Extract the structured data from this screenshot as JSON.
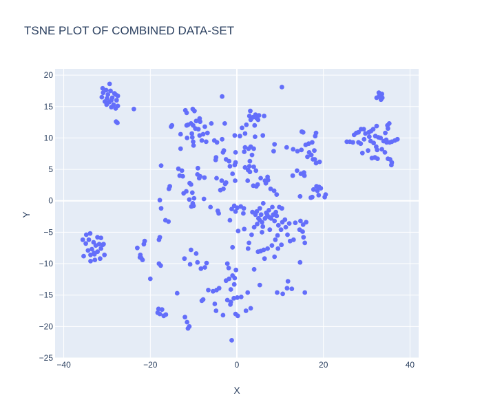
{
  "chart_data": {
    "type": "scatter",
    "title": "TSNE PLOT OF COMBINED DATA-SET",
    "xlabel": "X",
    "ylabel": "Y",
    "xlim": [
      -42,
      42
    ],
    "ylim": [
      -25,
      21
    ],
    "x_ticks": [
      -40,
      -20,
      0,
      20,
      40
    ],
    "y_ticks": [
      -25,
      -20,
      -15,
      -10,
      -5,
      0,
      5,
      10,
      15,
      20
    ],
    "x_tick_labels": [
      "−40",
      "−20",
      "0",
      "20",
      "40"
    ],
    "y_tick_labels": [
      "−25",
      "−20",
      "−15",
      "−10",
      "−5",
      "0",
      "5",
      "10",
      "15",
      "20"
    ],
    "grid": true,
    "background": "#e5ecf6",
    "marker_color": "#636efa",
    "points": [
      [
        -29.4,
        18.6
      ],
      [
        -31.0,
        17.9
      ],
      [
        -30.2,
        17.6
      ],
      [
        -29.2,
        17.5
      ],
      [
        -28.0,
        16.9
      ],
      [
        -27.5,
        16.7
      ],
      [
        -29.8,
        16.9
      ],
      [
        -30.9,
        17.2
      ],
      [
        -31.2,
        16.5
      ],
      [
        -30.0,
        16.3
      ],
      [
        -28.8,
        16.4
      ],
      [
        -27.8,
        16.0
      ],
      [
        -29.5,
        15.7
      ],
      [
        -30.5,
        15.8
      ],
      [
        -28.5,
        15.3
      ],
      [
        -27.5,
        15.1
      ],
      [
        -29.0,
        14.9
      ],
      [
        -30.1,
        15.3
      ],
      [
        -28.0,
        14.7
      ],
      [
        -27.9,
        12.6
      ],
      [
        -27.6,
        12.4
      ],
      [
        -23.8,
        14.6
      ],
      [
        -29.0,
        16.0
      ],
      [
        -28.3,
        17.1
      ],
      [
        -35.6,
        -6.2
      ],
      [
        -34.8,
        -5.4
      ],
      [
        -33.9,
        -5.2
      ],
      [
        -34.9,
        -6.8
      ],
      [
        -34.2,
        -6.2
      ],
      [
        -33.1,
        -6.6
      ],
      [
        -32.2,
        -5.8
      ],
      [
        -31.4,
        -5.9
      ],
      [
        -31.8,
        -6.9
      ],
      [
        -31.0,
        -7.0
      ],
      [
        -30.8,
        -6.9
      ],
      [
        -32.6,
        -7.1
      ],
      [
        -33.5,
        -7.7
      ],
      [
        -34.4,
        -7.9
      ],
      [
        -33.0,
        -8.3
      ],
      [
        -32.2,
        -8.1
      ],
      [
        -31.4,
        -7.6
      ],
      [
        -30.6,
        -8.6
      ],
      [
        -33.8,
        -8.6
      ],
      [
        -32.8,
        -9.4
      ],
      [
        -33.8,
        -9.6
      ],
      [
        -35.4,
        -8.8
      ],
      [
        -31.6,
        -9.2
      ],
      [
        -32.9,
        -8.5
      ],
      [
        -23.0,
        -7.5
      ],
      [
        -22.3,
        -8.6
      ],
      [
        -22.1,
        -9.1
      ],
      [
        -21.8,
        -9.4
      ],
      [
        -21.5,
        -6.9
      ],
      [
        -21.3,
        -6.4
      ],
      [
        -22.4,
        -9.0
      ],
      [
        -20.0,
        -12.4
      ],
      [
        -18.1,
        -17.2
      ],
      [
        -17.8,
        -18.0
      ],
      [
        -17.3,
        -17.3
      ],
      [
        -16.9,
        -18.3
      ],
      [
        -16.4,
        -18.1
      ],
      [
        -18.3,
        -17.8
      ],
      [
        -18.0,
        -10.0
      ],
      [
        -17.6,
        -10.3
      ],
      [
        -18.0,
        -6.2
      ],
      [
        -17.8,
        -5.8
      ],
      [
        -17.8,
        0.1
      ],
      [
        -17.5,
        -1.2
      ],
      [
        -16.5,
        -3.1
      ],
      [
        -15.8,
        -3.3
      ],
      [
        -17.5,
        5.6
      ],
      [
        -12.0,
        -18.5
      ],
      [
        -11.5,
        -19.3
      ],
      [
        -11.3,
        -20.3
      ],
      [
        -11.0,
        -20.0
      ],
      [
        -12.1,
        -9.2
      ],
      [
        -10.8,
        -10.1
      ],
      [
        -10.6,
        -7.8
      ],
      [
        -9.4,
        -8.4
      ],
      [
        -9.1,
        -9.8
      ],
      [
        -8.3,
        -10.8
      ],
      [
        -7.4,
        -10.6
      ],
      [
        -7.0,
        -9.9
      ],
      [
        -6.6,
        -14.2
      ],
      [
        -8.1,
        -15.9
      ],
      [
        -7.8,
        -15.7
      ],
      [
        -5.5,
        -14.4
      ],
      [
        -4.7,
        -14.2
      ],
      [
        -4.1,
        -13.9
      ],
      [
        -5.1,
        -16.4
      ],
      [
        -4.8,
        -17.5
      ],
      [
        -3.2,
        -18.2
      ],
      [
        -1.2,
        -22.2
      ],
      [
        -13.8,
        -14.7
      ],
      [
        -2.5,
        -12.7
      ],
      [
        -1.8,
        -12.4
      ],
      [
        -2.2,
        -10.0
      ],
      [
        -1.9,
        -10.7
      ],
      [
        -1.0,
        -11.9
      ],
      [
        -0.5,
        -12.3
      ],
      [
        -0.2,
        -11.0
      ],
      [
        -0.6,
        -13.3
      ],
      [
        -1.4,
        -14.1
      ],
      [
        -2.2,
        -15.8
      ],
      [
        -1.4,
        -16.1
      ],
      [
        -0.7,
        -15.5
      ],
      [
        0.1,
        -15.4
      ],
      [
        1.0,
        -15.3
      ],
      [
        -0.3,
        -18.0
      ],
      [
        0.2,
        -18.3
      ],
      [
        2.1,
        -17.5
      ],
      [
        3.2,
        -17.1
      ],
      [
        2.5,
        -14.6
      ],
      [
        -1.5,
        -16.5
      ],
      [
        -1.0,
        -7.4
      ],
      [
        -1.6,
        -3.1
      ],
      [
        0.3,
        -4.8
      ],
      [
        1.7,
        -4.5
      ],
      [
        2.6,
        -7.6
      ],
      [
        2.8,
        -6.7
      ],
      [
        3.4,
        -5.4
      ],
      [
        4.0,
        -4.2
      ],
      [
        4.7,
        -3.7
      ],
      [
        5.3,
        -3.1
      ],
      [
        6.0,
        -4.1
      ],
      [
        5.8,
        -5.0
      ],
      [
        6.2,
        -7.8
      ],
      [
        5.5,
        -8.0
      ],
      [
        4.9,
        -8.1
      ],
      [
        6.4,
        -9.2
      ],
      [
        7.1,
        -7.6
      ],
      [
        8.1,
        -7.1
      ],
      [
        8.7,
        -8.9
      ],
      [
        9.5,
        -7.6
      ],
      [
        10.3,
        -7.0
      ],
      [
        8.9,
        -6.2
      ],
      [
        9.4,
        -5.5
      ],
      [
        10.2,
        -4.6
      ],
      [
        11.3,
        -4.2
      ],
      [
        11.7,
        -5.4
      ],
      [
        12.3,
        -6.4
      ],
      [
        13.1,
        -6.2
      ],
      [
        14.5,
        -4.6
      ],
      [
        15.2,
        -4.9
      ],
      [
        15.4,
        -5.8
      ],
      [
        15.7,
        -6.7
      ],
      [
        14.6,
        -9.8
      ],
      [
        11.8,
        -12.8
      ],
      [
        11.6,
        -13.9
      ],
      [
        12.7,
        -14.0
      ],
      [
        9.3,
        -14.6
      ],
      [
        10.6,
        -14.8
      ],
      [
        15.7,
        -14.6
      ],
      [
        4.0,
        -10.9
      ],
      [
        5.3,
        -13.4
      ],
      [
        14.7,
        -3.2
      ],
      [
        16.0,
        -3.4
      ],
      [
        15.3,
        -3.8
      ],
      [
        13.5,
        -3.5
      ],
      [
        12.1,
        -3.6
      ],
      [
        11.1,
        -3.0
      ],
      [
        10.5,
        -3.4
      ],
      [
        9.6,
        -3.9
      ],
      [
        8.7,
        -3.2
      ],
      [
        7.6,
        -4.6
      ],
      [
        7.9,
        -2.8
      ],
      [
        8.4,
        -2.2
      ],
      [
        9.0,
        -1.8
      ],
      [
        9.8,
        -1.0
      ],
      [
        10.4,
        -1.2
      ],
      [
        8.2,
        -1.0
      ],
      [
        7.4,
        -1.5
      ],
      [
        7.0,
        -2.2
      ],
      [
        6.5,
        -2.8
      ],
      [
        5.8,
        -3.4
      ],
      [
        5.0,
        -2.8
      ],
      [
        4.6,
        -1.7
      ],
      [
        5.3,
        -1.2
      ],
      [
        4.3,
        -2.2
      ],
      [
        3.6,
        -1.8
      ],
      [
        6.1,
        -0.4
      ],
      [
        5.6,
        -2.2
      ],
      [
        6.8,
        -1.9
      ],
      [
        7.5,
        -2.6
      ],
      [
        9.2,
        -2.4
      ],
      [
        1.6,
        -1.2
      ],
      [
        0.9,
        -0.9
      ],
      [
        0.1,
        -1.1
      ],
      [
        -0.6,
        -0.8
      ],
      [
        -1.2,
        -1.3
      ],
      [
        -0.3,
        -1.7
      ],
      [
        1.5,
        -2.0
      ],
      [
        -4.4,
        -1.6
      ],
      [
        -4.2,
        -2.0
      ],
      [
        -6.1,
        -1.0
      ],
      [
        -10.5,
        -0.9
      ],
      [
        -10.0,
        -0.8
      ],
      [
        -10.2,
        -0.4
      ],
      [
        -11.0,
        0.2
      ],
      [
        -9.9,
        0.4
      ],
      [
        -7.6,
        0.3
      ],
      [
        -10.3,
        1.3
      ],
      [
        -11.7,
        1.5
      ],
      [
        -12.3,
        1.2
      ],
      [
        -10.9,
        2.8
      ],
      [
        -10.6,
        2.6
      ],
      [
        -12.5,
        3.9
      ],
      [
        -13.2,
        4.0
      ],
      [
        -12.7,
        4.8
      ],
      [
        -15.5,
        2.3
      ],
      [
        -15.7,
        1.9
      ],
      [
        -9.1,
        4.2
      ],
      [
        -8.5,
        3.9
      ],
      [
        -7.5,
        3.7
      ],
      [
        -8.7,
        3.6
      ],
      [
        -4.7,
        3.6
      ],
      [
        -3.5,
        3.2
      ],
      [
        -2.7,
        2.7
      ],
      [
        -2.5,
        2.9
      ],
      [
        -3.1,
        1.9
      ],
      [
        -3.8,
        1.7
      ],
      [
        -1.6,
        5.5
      ],
      [
        -0.3,
        6.1
      ],
      [
        -0.4,
        3.2
      ],
      [
        -1.0,
        4.3
      ],
      [
        1.9,
        5.3
      ],
      [
        2.6,
        4.9
      ],
      [
        3.0,
        4.6
      ],
      [
        2.9,
        5.5
      ],
      [
        3.9,
        5.4
      ],
      [
        4.4,
        4.8
      ],
      [
        3.8,
        2.4
      ],
      [
        4.5,
        2.3
      ],
      [
        4.8,
        2.6
      ],
      [
        5.5,
        3.6
      ],
      [
        6.5,
        3.2
      ],
      [
        7.2,
        3.3
      ],
      [
        7.1,
        3.8
      ],
      [
        6.7,
        2.8
      ],
      [
        7.8,
        1.9
      ],
      [
        8.6,
        1.6
      ],
      [
        9.2,
        1.0
      ],
      [
        12.9,
        4.0
      ],
      [
        13.9,
        4.8
      ],
      [
        14.8,
        4.3
      ],
      [
        15.5,
        4.5
      ],
      [
        15.6,
        4.0
      ],
      [
        14.6,
        0.7
      ],
      [
        17.1,
        0.5
      ],
      [
        17.7,
        1.8
      ],
      [
        18.4,
        2.3
      ],
      [
        19.0,
        2.2
      ],
      [
        19.4,
        2.0
      ],
      [
        18.6,
        1.6
      ],
      [
        18.9,
        0.9
      ],
      [
        20.3,
        0.6
      ],
      [
        20.5,
        1.0
      ],
      [
        17.4,
        0.6
      ],
      [
        -9.0,
        5.2
      ],
      [
        2.5,
        3.2
      ],
      [
        -15.2,
        11.8
      ],
      [
        -15.0,
        12.0
      ],
      [
        -11.9,
        14.4
      ],
      [
        -11.6,
        14.0
      ],
      [
        -10.2,
        14.6
      ],
      [
        -9.8,
        14.3
      ],
      [
        -8.6,
        13.1
      ],
      [
        -11.6,
        12.0
      ],
      [
        -11.3,
        12.1
      ],
      [
        -10.6,
        12.3
      ],
      [
        -10.1,
        12.0
      ],
      [
        -9.4,
        12.7
      ],
      [
        -8.5,
        12.6
      ],
      [
        -8.9,
        11.4
      ],
      [
        -9.6,
        11.5
      ],
      [
        -7.4,
        11.8
      ],
      [
        -6.8,
        10.8
      ],
      [
        -7.8,
        10.6
      ],
      [
        -8.6,
        10.4
      ],
      [
        -10.4,
        10.7
      ],
      [
        -10.3,
        10.1
      ],
      [
        -11.5,
        10.0
      ],
      [
        -13.0,
        10.6
      ],
      [
        -10.1,
        9.4
      ],
      [
        -10.0,
        8.8
      ],
      [
        -8.1,
        9.6
      ],
      [
        -7.1,
        9.4
      ],
      [
        -5.2,
        9.6
      ],
      [
        -4.6,
        9.3
      ],
      [
        -4.9,
        6.5
      ],
      [
        -4.8,
        6.9
      ],
      [
        -2.5,
        6.6
      ],
      [
        -1.8,
        6.3
      ],
      [
        -0.5,
        5.7
      ],
      [
        -3.2,
        7.7
      ],
      [
        -3.0,
        8.0
      ],
      [
        -3.4,
        9.8
      ],
      [
        -5.9,
        12.3
      ],
      [
        -2.8,
        12.3
      ],
      [
        -3.4,
        16.6
      ],
      [
        -13.0,
        8.3
      ],
      [
        -13.5,
        5.1
      ],
      [
        -0.3,
        7.7
      ],
      [
        -0.5,
        10.4
      ],
      [
        0.7,
        10.3
      ],
      [
        1.9,
        10.7
      ],
      [
        1.2,
        11.6
      ],
      [
        2.2,
        12.1
      ],
      [
        2.9,
        13.5
      ],
      [
        3.1,
        14.3
      ],
      [
        3.7,
        13.3
      ],
      [
        4.3,
        13.7
      ],
      [
        4.5,
        13.2
      ],
      [
        4.9,
        12.9
      ],
      [
        5.1,
        13.6
      ],
      [
        4.1,
        12.0
      ],
      [
        3.2,
        12.9
      ],
      [
        6.3,
        13.5
      ],
      [
        6.0,
        10.4
      ],
      [
        4.2,
        10.2
      ],
      [
        3.2,
        8.6
      ],
      [
        2.7,
        8.3
      ],
      [
        1.9,
        8.5
      ],
      [
        1.7,
        7.8
      ],
      [
        3.9,
        8.3
      ],
      [
        3.5,
        7.3
      ],
      [
        3.0,
        6.3
      ],
      [
        8.7,
        9.0
      ],
      [
        8.5,
        7.9
      ],
      [
        10.4,
        18.1
      ],
      [
        11.5,
        8.5
      ],
      [
        13.0,
        8.2
      ],
      [
        14.0,
        7.9
      ],
      [
        15.0,
        11.0
      ],
      [
        15.3,
        10.9
      ],
      [
        15.9,
        8.9
      ],
      [
        16.6,
        9.1
      ],
      [
        17.4,
        9.3
      ],
      [
        17.9,
        8.0
      ],
      [
        17.2,
        7.3
      ],
      [
        16.7,
        7.7
      ],
      [
        17.6,
        6.6
      ],
      [
        18.0,
        6.6
      ],
      [
        18.3,
        6.0
      ],
      [
        19.1,
        6.2
      ],
      [
        18.1,
        10.3
      ],
      [
        18.3,
        10.8
      ],
      [
        14.9,
        8.1
      ],
      [
        16.3,
        7.0
      ],
      [
        25.4,
        9.4
      ],
      [
        26.1,
        9.4
      ],
      [
        26.8,
        9.3
      ],
      [
        27.1,
        10.5
      ],
      [
        27.6,
        10.8
      ],
      [
        28.1,
        10.9
      ],
      [
        28.7,
        11.4
      ],
      [
        29.3,
        11.4
      ],
      [
        29.7,
        10.7
      ],
      [
        30.5,
        10.9
      ],
      [
        31.0,
        11.1
      ],
      [
        31.5,
        11.4
      ],
      [
        32.3,
        11.9
      ],
      [
        32.0,
        10.3
      ],
      [
        32.7,
        10.1
      ],
      [
        33.2,
        10.0
      ],
      [
        33.9,
        9.5
      ],
      [
        34.6,
        9.3
      ],
      [
        34.5,
        9.7
      ],
      [
        35.3,
        9.3
      ],
      [
        35.8,
        9.4
      ],
      [
        36.5,
        9.6
      ],
      [
        37.1,
        9.8
      ],
      [
        35.2,
        12.3
      ],
      [
        34.9,
        11.5
      ],
      [
        34.3,
        10.8
      ],
      [
        34.8,
        12.0
      ],
      [
        32.3,
        16.4
      ],
      [
        32.9,
        16.7
      ],
      [
        33.1,
        16.8
      ],
      [
        33.5,
        17.0
      ],
      [
        33.6,
        16.4
      ],
      [
        32.8,
        17.2
      ],
      [
        33.3,
        16.1
      ],
      [
        28.1,
        9.3
      ],
      [
        28.6,
        9.1
      ],
      [
        29.0,
        7.6
      ],
      [
        30.3,
        8.0
      ],
      [
        30.9,
        9.5
      ],
      [
        31.6,
        9.2
      ],
      [
        32.2,
        8.6
      ],
      [
        32.4,
        8.1
      ],
      [
        31.2,
        6.8
      ],
      [
        31.9,
        6.9
      ],
      [
        32.5,
        6.7
      ],
      [
        33.5,
        8.2
      ],
      [
        34.2,
        7.7
      ],
      [
        34.9,
        6.7
      ],
      [
        35.4,
        6.6
      ],
      [
        35.7,
        5.7
      ],
      [
        35.8,
        6.1
      ],
      [
        30.6,
        10.2
      ],
      [
        29.4,
        9.8
      ]
    ]
  }
}
